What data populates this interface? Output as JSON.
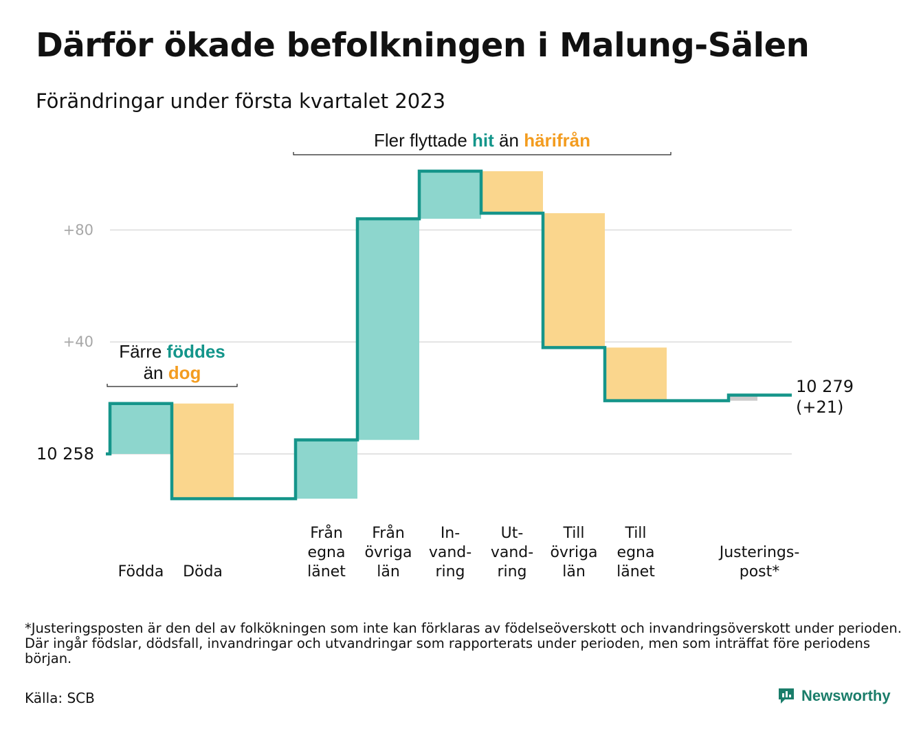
{
  "title": "Därför ökade befolkningen i Malung-Sälen",
  "subtitle": "Förändringar under första kvartalet 2023",
  "colors": {
    "inflow": "#8dd6cd",
    "outflow": "#fad68d",
    "adjustment": "#cccccc",
    "line": "#15958a",
    "grid": "#e3e3e3"
  },
  "chart_data": {
    "type": "waterfall",
    "start": {
      "value": 10258,
      "label": "10 258"
    },
    "end": {
      "value": 10279,
      "label": "10 279",
      "change_label": "(+21)"
    },
    "yticks": [
      {
        "value": 10298,
        "label": "+40"
      },
      {
        "value": 10338,
        "label": "+80"
      }
    ],
    "ylim": [
      10240,
      10354
    ],
    "steps": [
      {
        "label": [
          "Födda"
        ],
        "delta": 18,
        "kind": "inflow"
      },
      {
        "label": [
          "Döda"
        ],
        "delta": -34,
        "kind": "outflow"
      },
      {
        "label": [],
        "delta": 0,
        "kind": "gap"
      },
      {
        "label": [
          "Från",
          "egna",
          "länet"
        ],
        "delta": 21,
        "kind": "inflow"
      },
      {
        "label": [
          "Från",
          "övriga",
          "län"
        ],
        "delta": 79,
        "kind": "inflow"
      },
      {
        "label": [
          "In-",
          "vand-",
          "ring"
        ],
        "delta": 17,
        "kind": "inflow"
      },
      {
        "label": [
          "Ut-",
          "vand-",
          "ring"
        ],
        "delta": -15,
        "kind": "outflow"
      },
      {
        "label": [
          "Till",
          "övriga",
          "län"
        ],
        "delta": -48,
        "kind": "outflow"
      },
      {
        "label": [
          "Till",
          "egna",
          "länet"
        ],
        "delta": -19,
        "kind": "outflow"
      },
      {
        "label": [],
        "delta": 0,
        "kind": "gap"
      },
      {
        "label": [
          "Justerings-",
          "post*"
        ],
        "delta": 2,
        "kind": "adjustment"
      }
    ],
    "annotations": [
      {
        "lines": [
          [
            {
              "text": "Färre ",
              "style": "plain"
            },
            {
              "text": "föddes",
              "style": "teal"
            }
          ],
          [
            {
              "text": "än ",
              "style": "plain"
            },
            {
              "text": "dog",
              "style": "orange"
            }
          ]
        ],
        "from_step": 0,
        "to_step": 1
      },
      {
        "lines": [
          [
            {
              "text": "Fler flyttade ",
              "style": "plain"
            },
            {
              "text": "hit",
              "style": "teal"
            },
            {
              "text": " än ",
              "style": "plain"
            },
            {
              "text": "härifrån",
              "style": "orange"
            }
          ]
        ],
        "from_step": 3,
        "to_step": 8
      }
    ]
  },
  "footnote": "*Justeringsposten är den del av folkökningen som inte kan förklaras av födelseöverskott och invandringsöverskott under perioden. Där ingår födslar, dödsfall, invandringar och utvandringar som rapporterats under perioden, men som inträffat före periodens början.",
  "source": "Källa: SCB",
  "brand": {
    "name": "Newsworthy",
    "icon": "newsworthy-logo-icon"
  }
}
